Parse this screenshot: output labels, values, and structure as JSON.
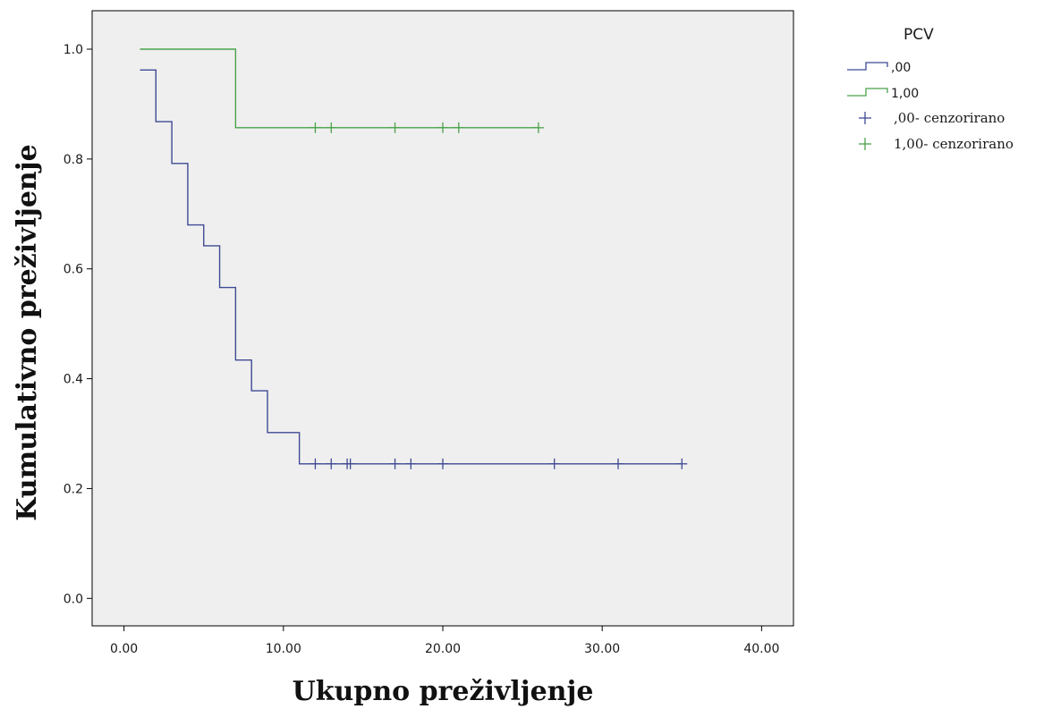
{
  "chart_data": {
    "type": "line",
    "subtype": "kaplan-meier-step",
    "xlabel": "Ukupno preživljenje",
    "ylabel": "Kumulativno preživljenje",
    "xlim": [
      -2,
      42
    ],
    "ylim": [
      -0.05,
      1.07
    ],
    "x_ticks": [
      0,
      10,
      20,
      30,
      40
    ],
    "x_tick_labels": [
      "0.00",
      "10.00",
      "20.00",
      "30.00",
      "40.00"
    ],
    "y_ticks": [
      0,
      0.2,
      0.4,
      0.6,
      0.8,
      1.0
    ],
    "y_tick_labels": [
      "0.0",
      "0.2",
      "0.4",
      "0.6",
      "0.8",
      "1.0"
    ],
    "grid": false,
    "background": "#efefef",
    "legend": {
      "title": "PCV",
      "position": "top-right-outside",
      "entries": [
        {
          "label": ",00",
          "kind": "step",
          "color": "#3f4a94"
        },
        {
          "label": "1,00",
          "kind": "step",
          "color": "#4aa24a"
        },
        {
          "label": ",00- cenzorirano",
          "kind": "censor",
          "color": "#3f4a94"
        },
        {
          "label": "1,00- cenzorirano",
          "kind": "censor",
          "color": "#4aa24a"
        }
      ]
    },
    "series": [
      {
        "name": ",00",
        "color": "#3f4a94",
        "steps": [
          {
            "x": 1,
            "y": 0.962
          },
          {
            "x": 2,
            "y": 0.868
          },
          {
            "x": 3,
            "y": 0.792
          },
          {
            "x": 4,
            "y": 0.68
          },
          {
            "x": 5,
            "y": 0.642
          },
          {
            "x": 6,
            "y": 0.566
          },
          {
            "x": 7,
            "y": 0.434
          },
          {
            "x": 8,
            "y": 0.378
          },
          {
            "x": 9,
            "y": 0.302
          },
          {
            "x": 11,
            "y": 0.245
          }
        ],
        "end_x": 35,
        "censored": [
          12,
          13,
          14,
          14.2,
          17,
          18,
          20,
          27,
          31,
          35
        ]
      },
      {
        "name": "1,00",
        "color": "#4aa24a",
        "steps": [
          {
            "x": 1,
            "y": 1.0
          },
          {
            "x": 7,
            "y": 0.857
          }
        ],
        "end_x": 26,
        "censored": [
          12,
          13,
          17,
          20,
          21,
          26
        ]
      }
    ]
  }
}
